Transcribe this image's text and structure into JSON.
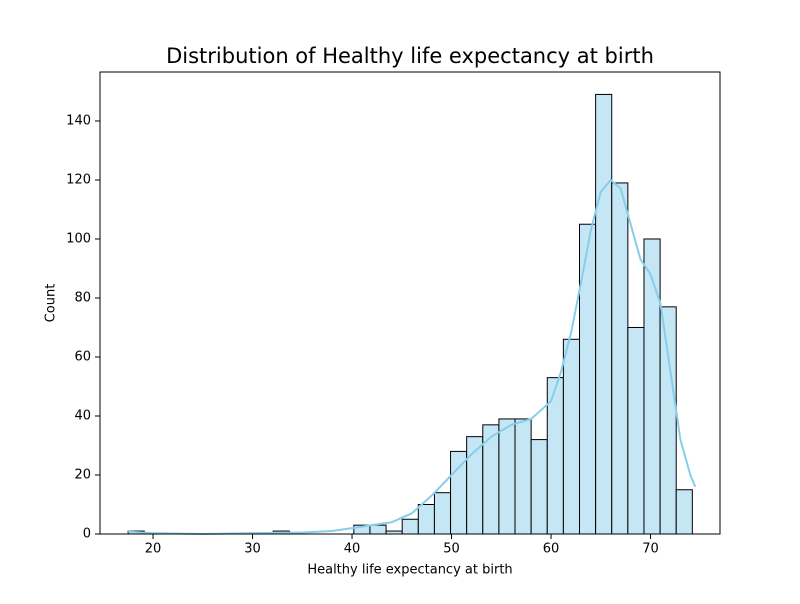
{
  "chart_data": {
    "type": "histogram",
    "title": "Distribution of Healthy life expectancy at birth",
    "x_label": "Healthy life expectancy at birth",
    "y_label": "Count",
    "bins": [
      17.5,
      19.12,
      20.74,
      22.36,
      23.98,
      25.6,
      27.22,
      28.84,
      30.46,
      32.08,
      33.7,
      35.32,
      36.94,
      38.56,
      40.18,
      41.8,
      43.42,
      45.04,
      46.66,
      48.28,
      49.9,
      51.52,
      53.14,
      54.76,
      56.38,
      58.0,
      59.62,
      61.24,
      62.86,
      64.48,
      66.1,
      67.72,
      69.34,
      70.96,
      72.58,
      74.2
    ],
    "values": [
      1,
      0,
      0,
      0,
      0,
      0,
      0,
      0,
      0,
      1,
      0,
      0,
      0,
      0,
      3,
      3,
      1,
      5,
      10,
      14,
      28,
      33,
      37,
      39,
      39,
      32,
      53,
      66,
      105,
      149,
      119,
      70,
      100,
      77,
      15
    ],
    "color": "#c5e7f5",
    "edge_color": "#000000",
    "kde": {
      "color": "#87ceeb",
      "x": [
        17.5,
        20,
        25,
        30,
        35,
        38,
        40,
        42,
        44,
        46,
        48,
        50,
        52,
        54,
        56,
        58,
        60,
        61,
        62,
        63,
        64,
        65,
        66,
        67,
        68,
        69,
        70,
        71,
        72,
        73,
        74,
        74.5
      ],
      "values": [
        0.8,
        0.3,
        0,
        0.3,
        0.5,
        1,
        2,
        3,
        4,
        7,
        13,
        20,
        27,
        33,
        37,
        39,
        45,
        55,
        68,
        85,
        103,
        116,
        120,
        117,
        105,
        93,
        88,
        78,
        55,
        32,
        20,
        16
      ]
    },
    "xlim": [
      14.67,
      76.98
    ],
    "ylim": [
      0,
      156.6
    ],
    "xticks": [
      20,
      30,
      40,
      50,
      60,
      70
    ],
    "yticks": [
      0,
      20,
      40,
      60,
      80,
      100,
      120,
      140
    ]
  }
}
